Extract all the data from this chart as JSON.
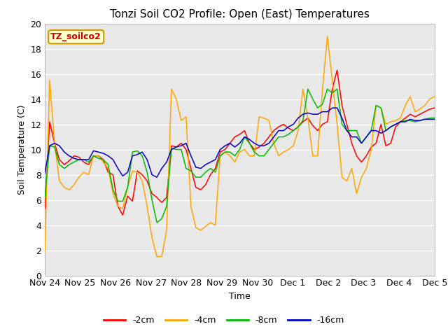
{
  "title": "Tonzi Soil CO2 Profile: Open (East) Temperatures",
  "xlabel": "Time",
  "ylabel": "Soil Temperature (C)",
  "ylim": [
    0,
    20
  ],
  "xlim": [
    0,
    11
  ],
  "xtick_labels": [
    "Nov 24",
    "Nov 25",
    "Nov 26",
    "Nov 27",
    "Nov 28",
    "Nov 29",
    "Nov 30",
    "Dec 1",
    "Dec 2",
    "Dec 3",
    "Dec 4",
    "Dec 5"
  ],
  "annotation_text": "TZ_soilco2",
  "annotation_box_facecolor": "#FFFFCC",
  "annotation_box_edgecolor": "#CC9900",
  "annotation_text_color": "#CC0000",
  "bg_color": "#E8E8E8",
  "colors": {
    "2cm": "#FF0000",
    "4cm": "#FFA500",
    "8cm": "#00BB00",
    "16cm": "#0000CC"
  },
  "legend_labels": [
    "-2cm",
    "-4cm",
    "-8cm",
    "-16cm"
  ],
  "title_fontsize": 11,
  "axis_label_fontsize": 9,
  "tick_fontsize": 9,
  "legend_fontsize": 9,
  "grid_color": "#FFFFFF",
  "spine_color": "#BBBBBB",
  "cm2": [
    5.3,
    12.2,
    10.5,
    9.2,
    8.8,
    9.1,
    9.5,
    9.4,
    9.0,
    8.8,
    9.5,
    9.5,
    9.2,
    8.2,
    8.0,
    5.5,
    4.8,
    6.3,
    5.9,
    8.3,
    8.0,
    7.5,
    6.5,
    6.2,
    5.8,
    6.2,
    10.3,
    10.2,
    10.5,
    10.0,
    8.5,
    7.0,
    6.8,
    7.2,
    8.0,
    8.5,
    9.8,
    10.0,
    10.5,
    11.0,
    11.2,
    11.5,
    10.5,
    10.0,
    10.2,
    10.5,
    11.0,
    11.5,
    11.8,
    12.0,
    11.7,
    11.5,
    11.8,
    12.2,
    12.5,
    11.9,
    11.5,
    12.0,
    12.2,
    14.8,
    16.3,
    13.5,
    12.0,
    10.5,
    9.5,
    9.0,
    9.5,
    10.2,
    10.5,
    12.0,
    10.3,
    10.5,
    11.8,
    12.2,
    12.5,
    12.8,
    12.6,
    12.8,
    13.0,
    13.2,
    13.3
  ],
  "cm4": [
    1.9,
    15.5,
    10.5,
    7.5,
    7.0,
    6.8,
    7.2,
    7.8,
    8.2,
    8.0,
    9.5,
    9.5,
    9.0,
    8.5,
    6.5,
    5.5,
    5.3,
    7.0,
    8.3,
    8.2,
    7.5,
    5.5,
    3.0,
    1.5,
    1.5,
    3.6,
    14.8,
    14.0,
    12.3,
    12.6,
    5.5,
    3.8,
    3.6,
    3.9,
    4.2,
    4.0,
    9.5,
    9.8,
    9.5,
    9.0,
    9.8,
    10.0,
    9.5,
    9.5,
    12.6,
    12.5,
    12.3,
    10.5,
    9.5,
    9.8,
    10.0,
    10.3,
    11.5,
    14.8,
    12.5,
    9.5,
    9.5,
    14.8,
    19.0,
    15.5,
    12.0,
    7.8,
    7.5,
    8.5,
    6.5,
    7.8,
    8.5,
    10.0,
    13.5,
    13.3,
    12.0,
    12.2,
    12.3,
    12.5,
    13.5,
    14.2,
    13.0,
    13.2,
    13.5,
    14.0,
    14.2
  ],
  "cm8": [
    6.2,
    10.3,
    10.2,
    8.8,
    8.5,
    8.8,
    9.0,
    9.2,
    9.2,
    9.0,
    9.5,
    9.3,
    9.2,
    8.8,
    6.8,
    5.9,
    5.9,
    7.0,
    9.8,
    9.9,
    9.5,
    8.2,
    6.0,
    4.2,
    4.5,
    5.5,
    10.1,
    10.0,
    10.0,
    8.5,
    8.3,
    7.8,
    7.8,
    8.2,
    8.5,
    8.2,
    9.5,
    9.8,
    9.8,
    9.5,
    10.0,
    11.0,
    10.5,
    9.8,
    9.5,
    9.5,
    10.0,
    10.5,
    11.0,
    11.0,
    11.2,
    11.5,
    11.8,
    12.3,
    14.8,
    14.0,
    13.3,
    13.6,
    14.8,
    14.5,
    14.8,
    12.0,
    11.5,
    11.5,
    11.5,
    10.5,
    11.0,
    11.5,
    13.5,
    13.3,
    11.5,
    11.8,
    12.0,
    12.2,
    12.3,
    12.3,
    12.2,
    12.3,
    12.4,
    12.5,
    12.5
  ],
  "cm16": [
    8.1,
    10.3,
    10.5,
    10.3,
    9.8,
    9.5,
    9.3,
    9.2,
    9.2,
    9.2,
    9.9,
    9.8,
    9.7,
    9.5,
    9.2,
    8.5,
    7.9,
    8.2,
    9.5,
    9.6,
    9.8,
    9.2,
    8.0,
    7.8,
    8.5,
    9.0,
    10.0,
    10.2,
    10.3,
    10.5,
    9.5,
    8.6,
    8.5,
    8.8,
    9.0,
    9.2,
    10.0,
    10.3,
    10.5,
    10.2,
    10.5,
    11.0,
    10.8,
    10.5,
    10.3,
    10.3,
    10.5,
    11.0,
    11.5,
    11.5,
    11.8,
    12.0,
    12.5,
    12.8,
    12.9,
    12.8,
    12.8,
    13.0,
    13.0,
    13.3,
    13.3,
    12.5,
    11.5,
    11.0,
    11.0,
    10.5,
    11.0,
    11.5,
    11.5,
    11.3,
    11.5,
    11.8,
    12.0,
    12.2,
    12.2,
    12.4,
    12.3,
    12.3,
    12.4,
    12.4,
    12.4
  ]
}
